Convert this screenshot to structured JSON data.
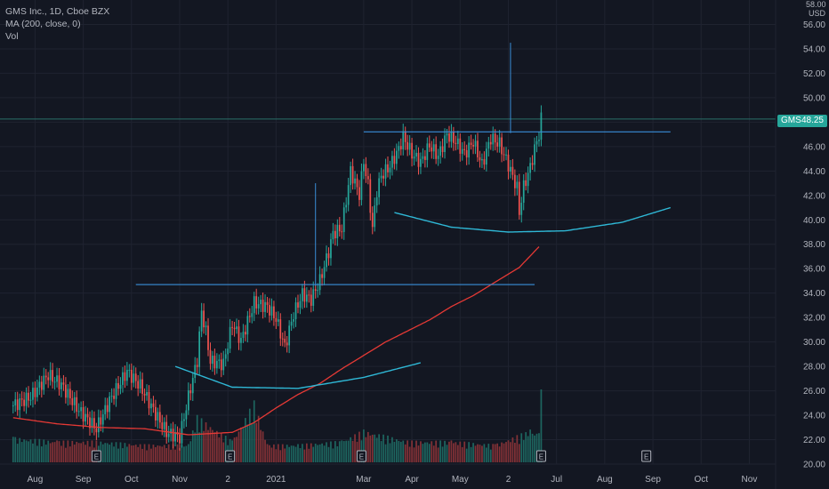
{
  "legend": {
    "symbol": "GMS Inc., 1D, Cboe BZX",
    "ma": "MA (200, close, 0)",
    "vol": "Vol"
  },
  "axis": {
    "currency": "USD",
    "top_label": "58.00"
  },
  "price_tag": {
    "ticker": "GMS",
    "value": "48.25"
  },
  "colors": {
    "background": "#131722",
    "grid": "#1f2330",
    "up": "#26a69a",
    "down": "#ef5350",
    "ma": "#e53935",
    "curve": "#2fb8d6",
    "level": "#3a8ed8",
    "text": "#b2b5be"
  },
  "chart_data": {
    "type": "line",
    "title": "GMS Inc., 1D, Cboe BZX",
    "y_ticks": [
      20,
      22,
      24,
      26,
      28,
      30,
      32,
      34,
      36,
      38,
      40,
      42,
      44,
      46,
      48,
      50,
      52,
      54,
      56
    ],
    "ylim": [
      20,
      58
    ],
    "x_ticks": [
      "Aug",
      "Sep",
      "Oct",
      "Nov",
      "2",
      "2021",
      "Mar",
      "Apr",
      "May",
      "2",
      "Jul",
      "Aug",
      "Sep",
      "Oct",
      "Nov"
    ],
    "x_tick_index": [
      10,
      32,
      54,
      76,
      98,
      120,
      160,
      182,
      204,
      226,
      248,
      270,
      292,
      314,
      336
    ],
    "xlim": [
      -6,
      348
    ],
    "last_price": 48.25,
    "series": [
      {
        "type": "line",
        "name": "MA (200, close, 0)",
        "x": [
          0,
          20,
          40,
          60,
          80,
          100,
          110,
          120,
          130,
          140,
          150,
          160,
          170,
          180,
          190,
          200,
          210,
          220,
          231,
          240
        ],
        "values": [
          23.8,
          23.3,
          23.0,
          22.9,
          22.4,
          22.6,
          23.4,
          24.6,
          25.7,
          26.6,
          27.8,
          28.9,
          30.0,
          30.9,
          31.8,
          32.9,
          33.8,
          34.9,
          36.1,
          37.8
        ]
      },
      {
        "type": "line",
        "name": "close",
        "x": [
          0,
          8,
          16,
          22,
          30,
          38,
          44,
          52,
          58,
          65,
          70,
          76,
          80,
          84,
          86,
          88,
          90,
          96,
          100,
          104,
          110,
          116,
          120,
          124,
          128,
          132,
          136,
          140,
          144,
          146,
          150,
          154,
          158,
          160,
          162,
          164,
          166,
          168,
          172,
          176,
          178,
          182,
          186,
          190,
          194,
          198,
          202,
          206,
          210,
          214,
          218,
          222,
          226,
          230,
          231,
          233,
          236,
          238,
          240,
          241
        ],
        "values": [
          24.8,
          25.5,
          27.3,
          26.5,
          24.4,
          22.9,
          25.2,
          27.6,
          26.4,
          24.1,
          22.6,
          22.2,
          25.5,
          28.5,
          32.5,
          30.8,
          28.4,
          28.2,
          31.5,
          30.1,
          33.2,
          32.9,
          31.9,
          29.6,
          32.3,
          33.9,
          33.5,
          35.0,
          37.4,
          38.9,
          39.3,
          44.0,
          42.1,
          44.8,
          42.8,
          39.3,
          42.4,
          43.6,
          44.4,
          45.8,
          46.8,
          45.4,
          44.7,
          46.1,
          45.2,
          47.0,
          46.4,
          45.4,
          46.4,
          44.5,
          46.7,
          46.2,
          44.5,
          42.6,
          40.6,
          42.7,
          44.3,
          45.8,
          47.0,
          48.25
        ]
      }
    ],
    "annotations": [
      {
        "kind": "level",
        "y": 34.7,
        "x": [
          56,
          238
        ]
      },
      {
        "kind": "level",
        "y": 47.2,
        "x": [
          160,
          300
        ]
      },
      {
        "kind": "vertical",
        "x": 138,
        "y": [
          34.6,
          43.0
        ]
      },
      {
        "kind": "vertical",
        "x": 227,
        "y": [
          47.1,
          54.5
        ]
      },
      {
        "kind": "curve",
        "x": [
          74,
          100,
          130,
          160,
          186
        ],
        "values": [
          28.0,
          26.3,
          26.2,
          27.1,
          28.3
        ]
      },
      {
        "kind": "curve",
        "x": [
          174,
          200,
          226,
          252,
          278,
          300
        ],
        "values": [
          40.6,
          39.4,
          39.0,
          39.1,
          39.8,
          41.0
        ]
      }
    ],
    "volume": {
      "name": "Vol",
      "note": "relative volume per day, 0-1",
      "x": [
        0,
        20,
        38,
        60,
        80,
        84,
        100,
        110,
        116,
        130,
        150,
        160,
        180,
        200,
        220,
        236,
        240,
        241
      ],
      "values": [
        0.35,
        0.3,
        0.3,
        0.25,
        0.25,
        0.65,
        0.3,
        0.85,
        0.25,
        0.25,
        0.3,
        0.45,
        0.3,
        0.3,
        0.25,
        0.45,
        0.4,
        1.0
      ]
    },
    "earnings_markers": [
      {
        "x": 38,
        "label": "E"
      },
      {
        "x": 99,
        "label": "E"
      },
      {
        "x": 159,
        "label": "E"
      },
      {
        "x": 241,
        "label": "E"
      },
      {
        "x": 289,
        "label": "E"
      }
    ]
  }
}
